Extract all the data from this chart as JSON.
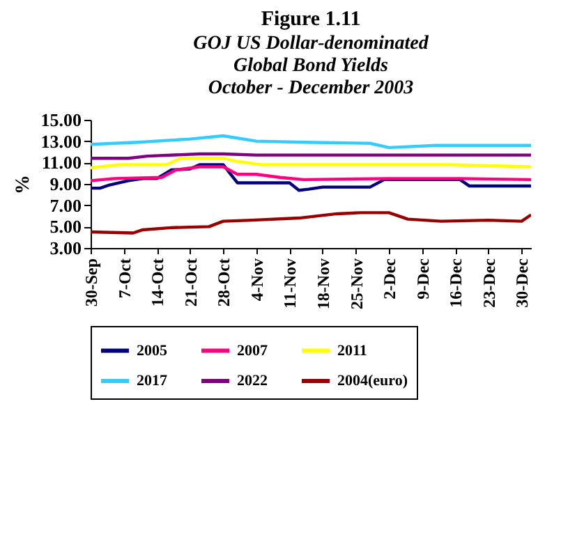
{
  "chart_data": {
    "type": "line",
    "title": "Figure 1.11",
    "subtitle": "GOJ US Dollar-denominated\nGlobal Bond Yields\nOctober  - December 2003",
    "ylabel": "%",
    "xlim": [
      "2003-09-30",
      "2004-01-01"
    ],
    "xticks": [
      {
        "value": "2003-09-30",
        "label": "30-Sep"
      },
      {
        "value": "2003-10-07",
        "label": "7-Oct"
      },
      {
        "value": "2003-10-14",
        "label": "14-Oct"
      },
      {
        "value": "2003-10-21",
        "label": "21-Oct"
      },
      {
        "value": "2003-10-28",
        "label": "28-Oct"
      },
      {
        "value": "2003-11-04",
        "label": "4-Nov"
      },
      {
        "value": "2003-11-11",
        "label": "11-Nov"
      },
      {
        "value": "2003-11-18",
        "label": "18-Nov"
      },
      {
        "value": "2003-11-25",
        "label": "25-Nov"
      },
      {
        "value": "2003-12-02",
        "label": "2-Dec"
      },
      {
        "value": "2003-12-09",
        "label": "9-Dec"
      },
      {
        "value": "2003-12-16",
        "label": "16-Dec"
      },
      {
        "value": "2003-12-23",
        "label": "23-Dec"
      },
      {
        "value": "2003-12-30",
        "label": "30-Dec"
      }
    ],
    "ylim": [
      3,
      15
    ],
    "yticks": [
      {
        "value": 3,
        "label": "3.00"
      },
      {
        "value": 5,
        "label": "5.00"
      },
      {
        "value": 7,
        "label": "7.00"
      },
      {
        "value": 9,
        "label": "9.00"
      },
      {
        "value": 11,
        "label": "11.00"
      },
      {
        "value": 13,
        "label": "13.00"
      },
      {
        "value": 15,
        "label": "15.00"
      }
    ],
    "legend": "bottom",
    "grid": false,
    "marker": "none",
    "series": [
      {
        "name": "2005",
        "color": "#000080",
        "x": [
          "2003-09-30",
          "2003-10-02",
          "2003-10-04",
          "2003-10-08",
          "2003-10-11",
          "2003-10-14",
          "2003-10-17",
          "2003-10-21",
          "2003-10-23",
          "2003-10-28",
          "2003-10-31",
          "2003-11-11",
          "2003-11-13",
          "2003-11-15",
          "2003-11-18",
          "2003-11-28",
          "2003-12-01",
          "2003-12-17",
          "2003-12-19",
          "2003-12-30",
          "2004-01-01"
        ],
        "values": [
          8.6,
          8.6,
          8.9,
          9.3,
          9.5,
          9.5,
          10.3,
          10.4,
          10.8,
          10.8,
          9.1,
          9.1,
          8.4,
          8.5,
          8.7,
          8.7,
          9.4,
          9.4,
          8.8,
          8.8,
          8.8
        ]
      },
      {
        "name": "2007",
        "color": "#ff0080",
        "x": [
          "2003-09-30",
          "2003-10-05",
          "2003-10-15",
          "2003-10-18",
          "2003-10-23",
          "2003-10-28",
          "2003-10-31",
          "2003-11-04",
          "2003-11-09",
          "2003-11-14",
          "2003-12-02",
          "2003-12-17",
          "2004-01-01"
        ],
        "values": [
          9.3,
          9.5,
          9.6,
          10.3,
          10.6,
          10.6,
          9.9,
          9.9,
          9.6,
          9.4,
          9.5,
          9.5,
          9.4
        ]
      },
      {
        "name": "2011",
        "color": "#ffff00",
        "x": [
          "2003-09-30",
          "2003-10-06",
          "2003-10-16",
          "2003-10-19",
          "2003-10-28",
          "2003-10-31",
          "2003-11-05",
          "2003-12-15",
          "2004-01-01"
        ],
        "values": [
          10.5,
          10.8,
          10.8,
          11.4,
          11.4,
          11.1,
          10.8,
          10.8,
          10.6
        ]
      },
      {
        "name": "2017",
        "color": "#33ccff",
        "x": [
          "2003-09-30",
          "2003-10-10",
          "2003-10-21",
          "2003-10-28",
          "2003-11-04",
          "2003-11-14",
          "2003-11-28",
          "2003-12-02",
          "2003-12-12",
          "2004-01-01"
        ],
        "values": [
          12.7,
          12.9,
          13.2,
          13.5,
          13.0,
          12.9,
          12.8,
          12.4,
          12.6,
          12.6
        ]
      },
      {
        "name": "2022",
        "color": "#800080",
        "x": [
          "2003-09-30",
          "2003-10-08",
          "2003-10-12",
          "2003-10-23",
          "2003-10-28",
          "2003-11-04",
          "2004-01-01"
        ],
        "values": [
          11.4,
          11.4,
          11.6,
          11.8,
          11.8,
          11.7,
          11.7
        ]
      },
      {
        "name": "2004(euro)",
        "color": "#990000",
        "x": [
          "2003-09-30",
          "2003-10-09",
          "2003-10-11",
          "2003-10-17",
          "2003-10-25",
          "2003-10-28",
          "2003-11-03",
          "2003-11-13",
          "2003-11-21",
          "2003-11-26",
          "2003-12-02",
          "2003-12-06",
          "2003-12-13",
          "2003-12-23",
          "2003-12-30",
          "2004-01-01"
        ],
        "values": [
          4.5,
          4.4,
          4.7,
          4.9,
          5.0,
          5.5,
          5.6,
          5.8,
          6.2,
          6.3,
          6.3,
          5.7,
          5.5,
          5.6,
          5.5,
          6.1
        ]
      }
    ]
  }
}
